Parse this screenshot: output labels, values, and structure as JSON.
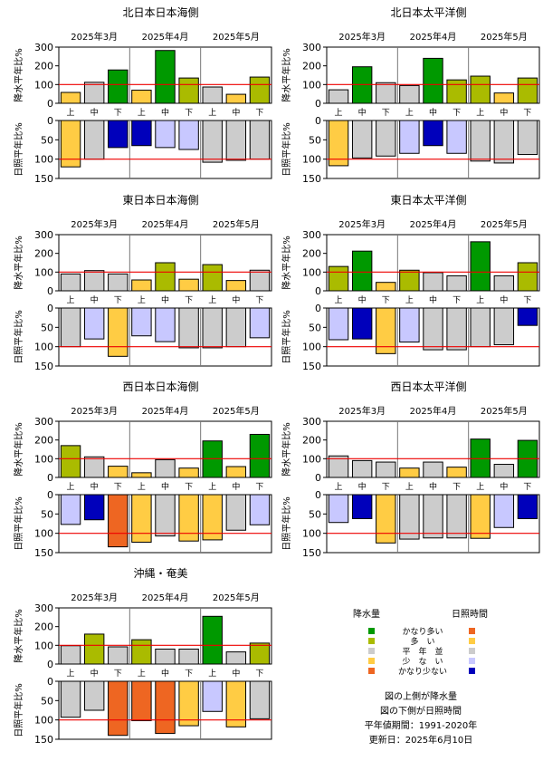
{
  "months": [
    "2025年3月",
    "2025年4月",
    "2025年5月"
  ],
  "dekads": [
    "上",
    "中",
    "下",
    "上",
    "中",
    "下",
    "上",
    "中",
    "下"
  ],
  "precip_axis": {
    "label": "降水平年比%",
    "ticks": [
      "0",
      "100",
      "200",
      "300"
    ],
    "ylim": [
      0,
      300
    ],
    "reference": 100
  },
  "sun_axis": {
    "label": "日照平年比%",
    "ticks": [
      "0",
      "50",
      "100",
      "150"
    ],
    "ylim": [
      0,
      150
    ],
    "reference": 100,
    "inverted": true
  },
  "colors": {
    "precip": {
      "much_above": "#009900",
      "above": "#aabb00",
      "normal": "#cccccc",
      "below": "#ffcc44",
      "much_below": "#ee6622"
    },
    "sun": {
      "much_above": "#ee6622",
      "above": "#ffcc44",
      "normal": "#cccccc",
      "below": "#c8c8ff",
      "much_below": "#0000bb"
    },
    "reference_line": "#ee0000"
  },
  "chart_data": [
    {
      "type": "bar",
      "title": "北日本日本海側",
      "precip": {
        "values": [
          58,
          112,
          178,
          70,
          282,
          135,
          87,
          48,
          140
        ],
        "class": [
          "below",
          "normal",
          "much_above",
          "below",
          "much_above",
          "above",
          "normal",
          "below",
          "above"
        ]
      },
      "sun": {
        "values": [
          120,
          100,
          70,
          65,
          70,
          75,
          108,
          103,
          100
        ],
        "class": [
          "above",
          "normal",
          "much_below",
          "much_below",
          "below",
          "below",
          "normal",
          "normal",
          "normal"
        ]
      }
    },
    {
      "type": "bar",
      "title": "北日本太平洋側",
      "precip": {
        "values": [
          72,
          195,
          110,
          95,
          240,
          125,
          145,
          55,
          135
        ],
        "class": [
          "normal",
          "much_above",
          "normal",
          "normal",
          "much_above",
          "above",
          "above",
          "below",
          "above"
        ]
      },
      "sun": {
        "values": [
          117,
          97,
          92,
          85,
          65,
          85,
          105,
          110,
          88
        ],
        "class": [
          "above",
          "normal",
          "normal",
          "below",
          "much_below",
          "below",
          "normal",
          "normal",
          "normal"
        ]
      }
    },
    {
      "type": "bar",
      "title": "東日本日本海側",
      "precip": {
        "values": [
          90,
          108,
          90,
          58,
          150,
          62,
          140,
          55,
          110
        ],
        "class": [
          "normal",
          "normal",
          "normal",
          "below",
          "above",
          "below",
          "above",
          "below",
          "normal"
        ]
      },
      "sun": {
        "values": [
          100,
          80,
          125,
          72,
          87,
          103,
          103,
          100,
          77
        ],
        "class": [
          "normal",
          "below",
          "above",
          "below",
          "below",
          "normal",
          "normal",
          "normal",
          "below"
        ]
      }
    },
    {
      "type": "bar",
      "title": "東日本太平洋側",
      "precip": {
        "values": [
          130,
          212,
          45,
          110,
          97,
          80,
          262,
          80,
          150
        ],
        "class": [
          "above",
          "much_above",
          "below",
          "above",
          "normal",
          "normal",
          "much_above",
          "normal",
          "above"
        ]
      },
      "sun": {
        "values": [
          82,
          80,
          118,
          88,
          108,
          108,
          100,
          95,
          45
        ],
        "class": [
          "below",
          "much_below",
          "above",
          "below",
          "normal",
          "normal",
          "normal",
          "normal",
          "much_below"
        ]
      }
    },
    {
      "type": "bar",
      "title": "西日本日本海側",
      "precip": {
        "values": [
          170,
          110,
          60,
          25,
          95,
          50,
          195,
          58,
          230
        ],
        "class": [
          "above",
          "normal",
          "below",
          "below",
          "normal",
          "below",
          "much_above",
          "below",
          "much_above"
        ]
      },
      "sun": {
        "values": [
          77,
          65,
          135,
          123,
          107,
          120,
          117,
          92,
          78
        ],
        "class": [
          "below",
          "much_below",
          "much_above",
          "above",
          "normal",
          "above",
          "above",
          "normal",
          "below"
        ]
      }
    },
    {
      "type": "bar",
      "title": "西日本太平洋側",
      "precip": {
        "values": [
          115,
          90,
          82,
          50,
          82,
          55,
          205,
          70,
          198
        ],
        "class": [
          "normal",
          "normal",
          "normal",
          "below",
          "normal",
          "below",
          "much_above",
          "normal",
          "much_above"
        ]
      },
      "sun": {
        "values": [
          72,
          62,
          125,
          115,
          112,
          112,
          113,
          85,
          62
        ],
        "class": [
          "below",
          "much_below",
          "above",
          "normal",
          "normal",
          "normal",
          "above",
          "below",
          "much_below"
        ]
      }
    },
    {
      "type": "bar",
      "title": "沖縄・奄美",
      "precip": {
        "values": [
          98,
          160,
          92,
          130,
          80,
          80,
          255,
          65,
          112
        ],
        "class": [
          "normal",
          "above",
          "normal",
          "above",
          "normal",
          "normal",
          "much_above",
          "normal",
          "above"
        ]
      },
      "sun": {
        "values": [
          93,
          75,
          140,
          102,
          135,
          115,
          78,
          118,
          97
        ],
        "class": [
          "normal",
          "normal",
          "much_above",
          "much_above",
          "much_above",
          "above",
          "below",
          "above",
          "normal"
        ]
      }
    }
  ],
  "legend": {
    "precip_title": "降水量",
    "sun_title": "日照時間",
    "items": [
      {
        "key": "much_above",
        "label": "かなり多い"
      },
      {
        "key": "above",
        "label": "多　い"
      },
      {
        "key": "normal",
        "label": "平　年　並"
      },
      {
        "key": "below",
        "label": "少　な　い"
      },
      {
        "key": "much_below",
        "label": "かなり少ない"
      }
    ]
  },
  "notes": [
    "図の上側が降水量",
    "図の下側が日照時間",
    "平年値期間：1991-2020年",
    "更新日：2025年6月10日"
  ]
}
